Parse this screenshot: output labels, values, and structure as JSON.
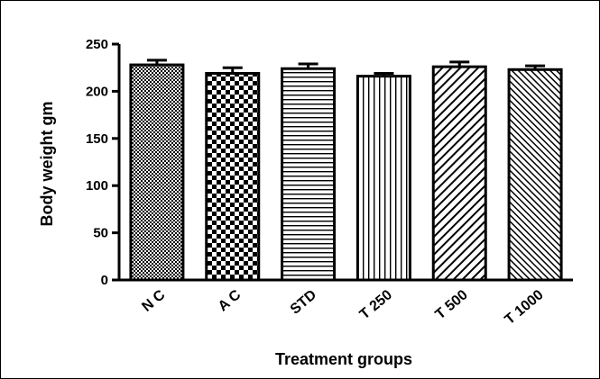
{
  "chart_data": {
    "type": "bar",
    "title": "",
    "xlabel": "Treatment groups",
    "ylabel": "Body weight  gm",
    "ylim": [
      0,
      250
    ],
    "yticks": [
      0,
      50,
      100,
      150,
      200,
      250
    ],
    "grid": false,
    "categories": [
      "N C",
      "A C",
      "STD",
      "T 250",
      "T 500",
      "T 1000"
    ],
    "values": [
      228,
      219,
      224,
      216,
      226,
      223
    ],
    "errors": [
      5,
      6,
      5,
      3,
      5,
      4
    ],
    "patterns": [
      "dots",
      "checker",
      "horizontal-lines",
      "vertical-lines",
      "diagonal-right",
      "diagonal-right-fine"
    ],
    "colors": {
      "stroke": "#000000",
      "fill": "#ffffff"
    }
  }
}
